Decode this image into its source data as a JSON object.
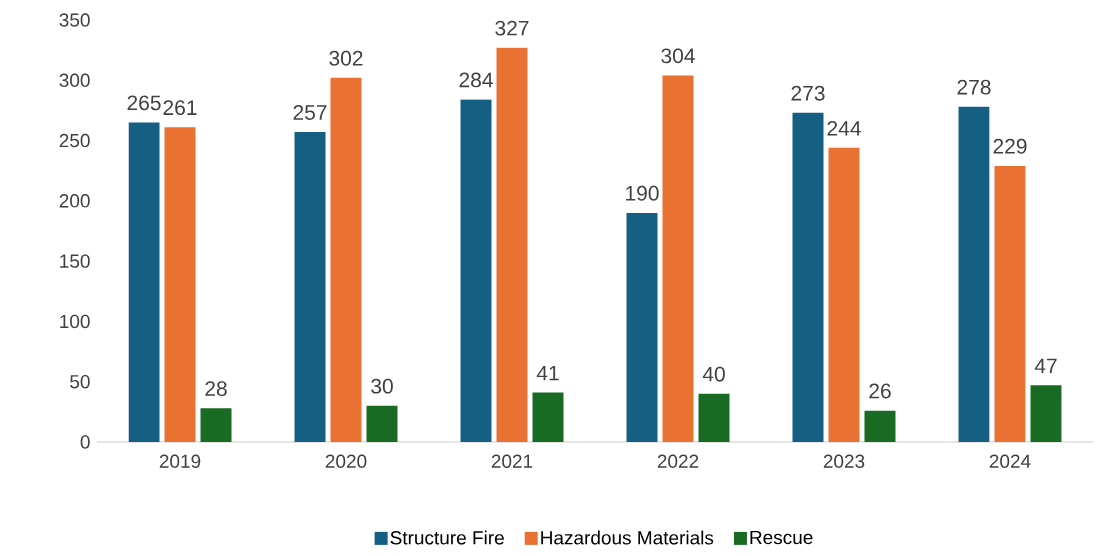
{
  "chart_data": {
    "type": "bar",
    "categories": [
      "2019",
      "2020",
      "2021",
      "2022",
      "2023",
      "2024"
    ],
    "series": [
      {
        "name": "Structure Fire",
        "color": "#156082",
        "values": [
          265,
          257,
          284,
          190,
          273,
          278
        ]
      },
      {
        "name": "Hazardous Materials",
        "color": "#e97132",
        "values": [
          261,
          302,
          327,
          304,
          244,
          229
        ]
      },
      {
        "name": "Rescue",
        "color": "#196b24",
        "values": [
          28,
          30,
          41,
          40,
          26,
          47
        ]
      }
    ],
    "ylim": [
      0,
      350
    ],
    "yticks": [
      0,
      50,
      100,
      150,
      200,
      250,
      300,
      350
    ],
    "data_labels": true,
    "grid": false,
    "legend": "bottom"
  }
}
